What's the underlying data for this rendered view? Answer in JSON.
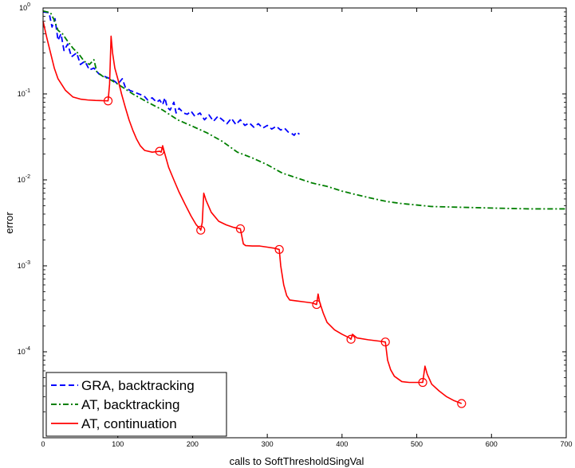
{
  "chart_data": {
    "type": "line",
    "title": "",
    "xlabel": "calls to SoftThresholdSingVal",
    "ylabel": "error",
    "xlim": [
      0,
      700
    ],
    "ylim": [
      1e-05,
      1
    ],
    "yscale": "log",
    "grid": false,
    "legend_position": "bottom-left",
    "x_ticks": [
      0,
      100,
      200,
      300,
      400,
      500,
      600,
      700
    ],
    "x_tick_labels": [
      "0",
      "100",
      "200",
      "300",
      "400",
      "500",
      "600",
      "700"
    ],
    "y_ticks": [
      0.0001,
      0.001,
      0.01,
      0.1,
      1
    ],
    "y_tick_labels": [
      {
        "base": "10",
        "exp": "-4"
      },
      {
        "base": "10",
        "exp": "-3"
      },
      {
        "base": "10",
        "exp": "-2"
      },
      {
        "base": "10",
        "exp": "-1"
      },
      {
        "base": "10",
        "exp": "0"
      }
    ],
    "series": [
      {
        "name": "GRA, backtracking",
        "color": "#0000ff",
        "style": "dashed",
        "points": [
          [
            0,
            0.9
          ],
          [
            8,
            0.88
          ],
          [
            12,
            0.6
          ],
          [
            16,
            0.75
          ],
          [
            20,
            0.42
          ],
          [
            24,
            0.5
          ],
          [
            28,
            0.32
          ],
          [
            33,
            0.38
          ],
          [
            38,
            0.27
          ],
          [
            45,
            0.3
          ],
          [
            50,
            0.22
          ],
          [
            56,
            0.24
          ],
          [
            62,
            0.19
          ],
          [
            68,
            0.2
          ],
          [
            75,
            0.17
          ],
          [
            82,
            0.16
          ],
          [
            90,
            0.15
          ],
          [
            96,
            0.14
          ],
          [
            100,
            0.13
          ],
          [
            106,
            0.15
          ],
          [
            110,
            0.12
          ],
          [
            116,
            0.11
          ],
          [
            122,
            0.105
          ],
          [
            128,
            0.1
          ],
          [
            135,
            0.095
          ],
          [
            140,
            0.085
          ],
          [
            146,
            0.09
          ],
          [
            152,
            0.08
          ],
          [
            156,
            0.085
          ],
          [
            160,
            0.075
          ],
          [
            163,
            0.09
          ],
          [
            166,
            0.07
          ],
          [
            170,
            0.065
          ],
          [
            175,
            0.08
          ],
          [
            178,
            0.06
          ],
          [
            182,
            0.068
          ],
          [
            188,
            0.06
          ],
          [
            193,
            0.058
          ],
          [
            198,
            0.063
          ],
          [
            203,
            0.055
          ],
          [
            210,
            0.06
          ],
          [
            216,
            0.05
          ],
          [
            222,
            0.057
          ],
          [
            228,
            0.048
          ],
          [
            234,
            0.055
          ],
          [
            240,
            0.05
          ],
          [
            246,
            0.045
          ],
          [
            252,
            0.052
          ],
          [
            258,
            0.044
          ],
          [
            264,
            0.05
          ],
          [
            270,
            0.043
          ],
          [
            276,
            0.046
          ],
          [
            282,
            0.041
          ],
          [
            288,
            0.045
          ],
          [
            294,
            0.04
          ],
          [
            300,
            0.043
          ],
          [
            306,
            0.039
          ],
          [
            312,
            0.042
          ],
          [
            318,
            0.038
          ],
          [
            323,
            0.04
          ],
          [
            328,
            0.036
          ],
          [
            332,
            0.035
          ],
          [
            336,
            0.033
          ],
          [
            339,
            0.036
          ],
          [
            343,
            0.034
          ]
        ],
        "markers": []
      },
      {
        "name": "AT, backtracking",
        "color": "#007f00",
        "style": "dashdot",
        "points": [
          [
            0,
            0.92
          ],
          [
            10,
            0.88
          ],
          [
            15,
            0.72
          ],
          [
            20,
            0.55
          ],
          [
            26,
            0.5
          ],
          [
            32,
            0.42
          ],
          [
            40,
            0.34
          ],
          [
            48,
            0.29
          ],
          [
            55,
            0.24
          ],
          [
            62,
            0.22
          ],
          [
            68,
            0.25
          ],
          [
            72,
            0.18
          ],
          [
            80,
            0.16
          ],
          [
            88,
            0.15
          ],
          [
            100,
            0.13
          ],
          [
            120,
            0.1
          ],
          [
            140,
            0.08
          ],
          [
            160,
            0.065
          ],
          [
            180,
            0.05
          ],
          [
            200,
            0.042
          ],
          [
            220,
            0.035
          ],
          [
            240,
            0.028
          ],
          [
            260,
            0.021
          ],
          [
            280,
            0.018
          ],
          [
            300,
            0.015
          ],
          [
            320,
            0.012
          ],
          [
            340,
            0.0105
          ],
          [
            360,
            0.0092
          ],
          [
            380,
            0.0084
          ],
          [
            400,
            0.0074
          ],
          [
            420,
            0.0067
          ],
          [
            440,
            0.0061
          ],
          [
            460,
            0.0056
          ],
          [
            480,
            0.0053
          ],
          [
            500,
            0.0051
          ],
          [
            520,
            0.0049
          ],
          [
            560,
            0.0048
          ],
          [
            600,
            0.0047
          ],
          [
            650,
            0.0046
          ],
          [
            700,
            0.0046
          ]
        ],
        "markers": []
      },
      {
        "name": "AT, continuation",
        "color": "#ff0000",
        "style": "solid",
        "points": [
          [
            0,
            0.7
          ],
          [
            5,
            0.45
          ],
          [
            10,
            0.3
          ],
          [
            15,
            0.2
          ],
          [
            20,
            0.15
          ],
          [
            30,
            0.11
          ],
          [
            40,
            0.092
          ],
          [
            50,
            0.087
          ],
          [
            60,
            0.085
          ],
          [
            70,
            0.084
          ],
          [
            87,
            0.083
          ],
          [
            89,
            0.13
          ],
          [
            91,
            0.47
          ],
          [
            93,
            0.3
          ],
          [
            96,
            0.2
          ],
          [
            100,
            0.15
          ],
          [
            105,
            0.1
          ],
          [
            110,
            0.07
          ],
          [
            115,
            0.05
          ],
          [
            120,
            0.038
          ],
          [
            125,
            0.03
          ],
          [
            130,
            0.025
          ],
          [
            136,
            0.022
          ],
          [
            146,
            0.021
          ],
          [
            156,
            0.0215
          ],
          [
            158,
            0.021
          ],
          [
            160,
            0.025
          ],
          [
            163,
            0.02
          ],
          [
            168,
            0.014
          ],
          [
            175,
            0.01
          ],
          [
            182,
            0.0072
          ],
          [
            190,
            0.0052
          ],
          [
            198,
            0.0038
          ],
          [
            205,
            0.003
          ],
          [
            210,
            0.0027
          ],
          [
            211,
            0.0026
          ],
          [
            213,
            0.0032
          ],
          [
            215,
            0.007
          ],
          [
            218,
            0.0058
          ],
          [
            225,
            0.0042
          ],
          [
            235,
            0.0033
          ],
          [
            245,
            0.003
          ],
          [
            255,
            0.0028
          ],
          [
            264,
            0.0027
          ],
          [
            266,
            0.0022
          ],
          [
            268,
            0.0018
          ],
          [
            271,
            0.00172
          ],
          [
            280,
            0.0017
          ],
          [
            290,
            0.0017
          ],
          [
            300,
            0.00165
          ],
          [
            310,
            0.0016
          ],
          [
            316,
            0.00155
          ],
          [
            318,
            0.001
          ],
          [
            322,
            0.0006
          ],
          [
            326,
            0.00045
          ],
          [
            330,
            0.0004
          ],
          [
            340,
            0.00039
          ],
          [
            350,
            0.00038
          ],
          [
            360,
            0.00037
          ],
          [
            366,
            0.000355
          ],
          [
            368,
            0.00047
          ],
          [
            370,
            0.00038
          ],
          [
            375,
            0.00028
          ],
          [
            380,
            0.00022
          ],
          [
            390,
            0.00018
          ],
          [
            400,
            0.00016
          ],
          [
            410,
            0.000145
          ],
          [
            412,
            0.00014
          ],
          [
            414,
            0.00016
          ],
          [
            420,
            0.000145
          ],
          [
            435,
            0.000138
          ],
          [
            450,
            0.000133
          ],
          [
            458,
            0.00013
          ],
          [
            461,
            8e-05
          ],
          [
            465,
            6.2e-05
          ],
          [
            470,
            5.2e-05
          ],
          [
            480,
            4.5e-05
          ],
          [
            490,
            4.4e-05
          ],
          [
            500,
            4.4e-05
          ],
          [
            508,
            4.4e-05
          ],
          [
            511,
            6.8e-05
          ],
          [
            514,
            5.5e-05
          ],
          [
            520,
            4.2e-05
          ],
          [
            530,
            3.5e-05
          ],
          [
            540,
            3e-05
          ],
          [
            550,
            2.7e-05
          ],
          [
            560,
            2.5e-05
          ]
        ],
        "markers": [
          [
            87,
            0.083
          ],
          [
            156,
            0.0215
          ],
          [
            211,
            0.0026
          ],
          [
            264,
            0.0027
          ],
          [
            316,
            0.00155
          ],
          [
            366,
            0.000355
          ],
          [
            412,
            0.00014
          ],
          [
            458,
            0.00013
          ],
          [
            508,
            4.4e-05
          ],
          [
            560,
            2.5e-05
          ]
        ]
      }
    ]
  }
}
